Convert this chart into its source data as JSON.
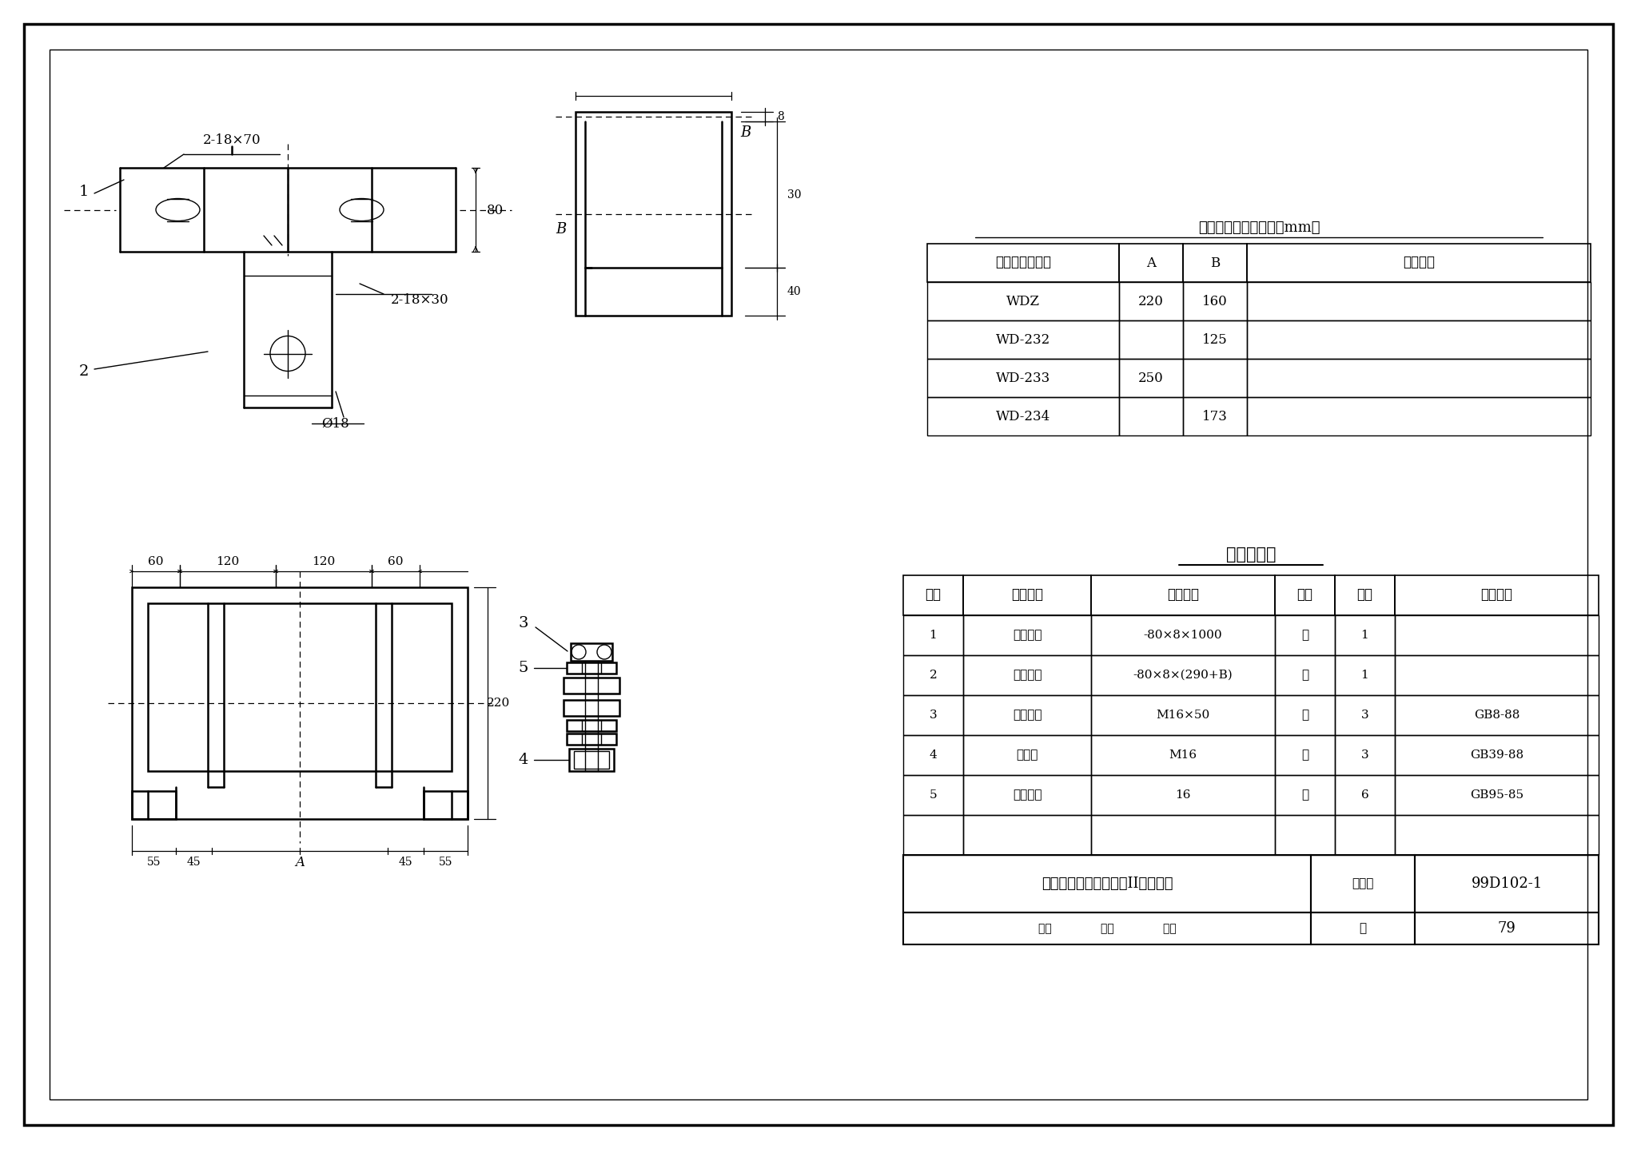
{
  "title": "电缆终端头固定支架（II）制造图",
  "figure_number": "99D102-1",
  "page": "79",
  "table1_title": "固定支架安装尺寸表（mm）",
  "table1_headers": [
    "电缆终端头型号",
    "A",
    "B",
    "附　　注"
  ],
  "table1_rows": [
    [
      "WDZ",
      "220",
      "160",
      ""
    ],
    [
      "WD-232",
      "",
      "125",
      ""
    ],
    [
      "WD-233",
      "250",
      "",
      ""
    ],
    [
      "WD-234",
      "",
      "173",
      ""
    ]
  ],
  "table2_title": "材　料　表",
  "table2_headers": [
    "序号",
    "名　　称",
    "规　　格",
    "单位",
    "数量",
    "附　　注"
  ],
  "table2_rows": [
    [
      "1",
      "扁　　锂",
      "-80×8×1000",
      "块",
      "1",
      ""
    ],
    [
      "2",
      "扁　　锂",
      "-80×8×(290+B)",
      "块",
      "1",
      ""
    ],
    [
      "3",
      "方头螺栓",
      "M16×50",
      "个",
      "3",
      "GB8-88"
    ],
    [
      "4",
      "方螺母",
      "M16",
      "个",
      "3",
      "GB39-88"
    ],
    [
      "5",
      "垫　　圈",
      "16",
      "个",
      "6",
      "GB95-85"
    ]
  ],
  "ann_2_18_70": "2-18×70",
  "ann_2_18_30": "2-18×30",
  "ann_80": "80",
  "ann_phi18": "Ø18",
  "ann_B": "B",
  "ann_8": "8",
  "ann_30": "30",
  "ann_40": "40",
  "ann_60": "60",
  "ann_120": "120",
  "ann_220": "220",
  "ann_55": "55",
  "ann_45": "45",
  "ann_A": "A",
  "footer_collection": "图集号",
  "footer_review": "审核",
  "footer_check": "校对",
  "footer_design": "设计"
}
